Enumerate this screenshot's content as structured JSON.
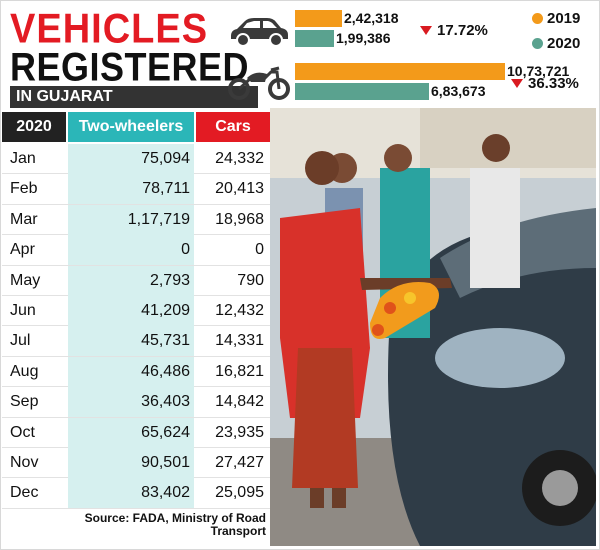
{
  "header": {
    "title_line1": "VEHICLES",
    "title_line2": "REGISTERED",
    "subtitle": "IN GUJARAT"
  },
  "chart_data": [
    {
      "type": "bar",
      "orientation": "horizontal",
      "categories": [
        "Cars",
        "Two-wheelers"
      ],
      "series": [
        {
          "name": "2019",
          "values": [
            242318,
            1073721
          ],
          "labels": [
            "2,42,318",
            "10,73,721"
          ],
          "color": "#f39a1a"
        },
        {
          "name": "2020",
          "values": [
            199386,
            683673
          ],
          "labels": [
            "1,99,386",
            "6,83,673"
          ],
          "color": "#5aa28f"
        }
      ],
      "change": [
        {
          "category": "Cars",
          "label": "17.72%",
          "direction": "down"
        },
        {
          "category": "Two-wheelers",
          "label": "36.33%",
          "direction": "down"
        }
      ],
      "legend": {
        "placement": "top-right",
        "entries": [
          "2019",
          "2020"
        ]
      }
    },
    {
      "type": "table",
      "columns": [
        "2020",
        "Two-wheelers",
        "Cars"
      ],
      "rows": [
        {
          "month": "Jan",
          "two_wheelers": "75,094",
          "cars": "24,332"
        },
        {
          "month": "Feb",
          "two_wheelers": "78,711",
          "cars": "20,413"
        },
        {
          "month": "Mar",
          "two_wheelers": "1,17,719",
          "cars": "18,968"
        },
        {
          "month": "Apr",
          "two_wheelers": "0",
          "cars": "0"
        },
        {
          "month": "May",
          "two_wheelers": "2,793",
          "cars": "790"
        },
        {
          "month": "Jun",
          "two_wheelers": "41,209",
          "cars": "12,432"
        },
        {
          "month": "Jul",
          "two_wheelers": "45,731",
          "cars": "14,331"
        },
        {
          "month": "Aug",
          "two_wheelers": "46,486",
          "cars": "16,821"
        },
        {
          "month": "Sep",
          "two_wheelers": "36,403",
          "cars": "14,842"
        },
        {
          "month": "Oct",
          "two_wheelers": "65,624",
          "cars": "23,935"
        },
        {
          "month": "Nov",
          "two_wheelers": "90,501",
          "cars": "27,427"
        },
        {
          "month": "Dec",
          "two_wheelers": "83,402",
          "cars": "25,095"
        }
      ]
    }
  ],
  "source": "Source: FADA, Ministry of Road Transport",
  "icons": {
    "car": "car-icon",
    "motorcycle": "motorcycle-icon",
    "down": "down-triangle-icon"
  },
  "colors": {
    "title_red": "#e31b23",
    "teal": "#2bb6b8",
    "orange": "#f39a1a",
    "green": "#5aa28f"
  }
}
